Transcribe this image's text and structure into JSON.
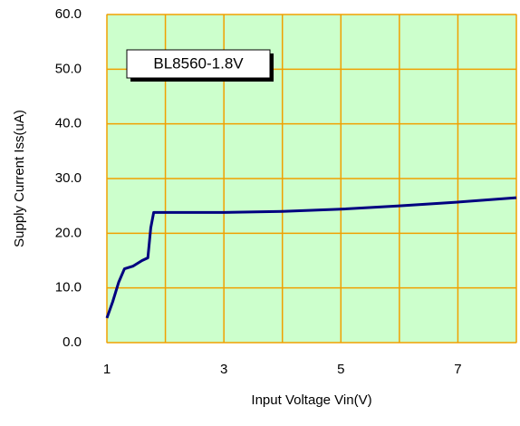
{
  "chart_data": {
    "type": "line",
    "annotation": "BL8560-1.8V",
    "x_label": "Input Voltage Vin(V)",
    "y_label": "Supply Current Iss(uA)",
    "x": [
      1,
      1.1,
      1.2,
      1.3,
      1.45,
      1.6,
      1.7,
      1.75,
      1.8,
      2,
      3,
      4,
      5,
      6,
      7,
      8
    ],
    "series": [
      {
        "color": "#000080",
        "values": [
          4.5,
          7.5,
          11,
          13.5,
          14,
          15,
          15.5,
          21,
          23.8,
          23.8,
          23.8,
          24,
          24.4,
          25,
          25.7,
          26.5
        ]
      }
    ],
    "xlim": [
      1,
      8
    ],
    "xticks": [
      1,
      3,
      5,
      7
    ],
    "xminor_ticks": [
      2,
      4,
      6,
      8
    ],
    "ylim": [
      0,
      60
    ],
    "yticks": [
      {
        "value": 0,
        "label": "0.0"
      },
      {
        "value": 10,
        "label": "10.0"
      },
      {
        "value": 20,
        "label": "20.0"
      },
      {
        "value": 30,
        "label": "30.0"
      },
      {
        "value": 40,
        "label": "40.0"
      },
      {
        "value": 50,
        "label": "50.0"
      },
      {
        "value": 60,
        "label": "60.0"
      }
    ],
    "grid": true,
    "grid_color": "#f0a000",
    "background": "#ccffcc"
  }
}
